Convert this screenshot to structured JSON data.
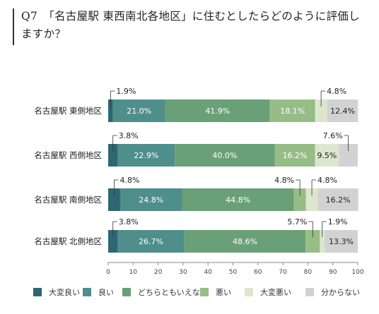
{
  "title": "Q7　「名古屋駅 東西南北各地区」に住むとしたらどのように評価しますか？",
  "chart_data": {
    "type": "bar",
    "orientation": "horizontal",
    "stacked": true,
    "title": "Q7　「名古屋駅 東西南北各地区」に住むとしたらどのように評価しますか？",
    "categories": [
      "名古屋駅 東側地区",
      "名古屋駅 西側地区",
      "名古屋駅 南側地区",
      "名古屋駅 北側地区"
    ],
    "series": [
      {
        "name": "大変良い",
        "color": "#2e6674",
        "values": [
          1.9,
          3.8,
          4.8,
          3.8
        ]
      },
      {
        "name": "良い",
        "color": "#4e8e8b",
        "values": [
          21.0,
          22.9,
          24.8,
          26.7
        ]
      },
      {
        "name": "どちらともいえない",
        "color": "#6aa077",
        "values": [
          41.9,
          40.0,
          44.8,
          48.6
        ]
      },
      {
        "name": "悪い",
        "color": "#97bd86",
        "values": [
          18.1,
          16.2,
          4.8,
          5.7
        ]
      },
      {
        "name": "大変悪い",
        "color": "#dce6ce",
        "values": [
          4.8,
          9.5,
          4.8,
          1.9
        ]
      },
      {
        "name": "分からない",
        "color": "#d2d2d2",
        "values": [
          12.4,
          7.6,
          16.2,
          13.3
        ]
      }
    ],
    "labels": [
      [
        "1.9%",
        "21.0%",
        "41.9%",
        "18.1%",
        "4.8%",
        "12.4%"
      ],
      [
        "3.8%",
        "22.9%",
        "40.0%",
        "16.2%",
        "9.5%",
        "7.6%"
      ],
      [
        "4.8%",
        "24.8%",
        "44.8%",
        "4.8%",
        "4.8%",
        "16.2%"
      ],
      [
        "3.8%",
        "26.7%",
        "48.6%",
        "5.7%",
        "1.9%",
        "13.3%"
      ]
    ],
    "xlim": [
      0,
      100
    ],
    "xticks": [
      0,
      10,
      20,
      30,
      40,
      50,
      60,
      70,
      80,
      90,
      100
    ],
    "legend_position": "bottom",
    "grid": false
  }
}
